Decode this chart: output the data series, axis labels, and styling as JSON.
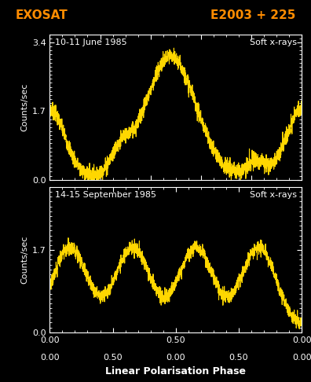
{
  "title_left": "EXOSAT",
  "title_right": "E2003 + 225",
  "title_color": "#FF8C00",
  "background_color": "#000000",
  "panel1_label": "10-11 June 1985",
  "panel2_label": "14-15 September 1985",
  "soft_xrays_label": "Soft x-rays",
  "ylabel": "Counts/sec",
  "xlabel": "Linear Polarisation Phase",
  "yticks1": [
    0.0,
    1.7,
    3.4
  ],
  "yticks2": [
    0.0,
    1.7
  ],
  "ylim1": [
    0.0,
    3.6
  ],
  "ylim2": [
    0.0,
    3.0
  ],
  "xlim": [
    0.0,
    1.0
  ],
  "curve_color": "#FFD700",
  "axes_color": "#FFFFFF",
  "label_color": "#FFFFFF",
  "curve_linewidth": 0.8
}
